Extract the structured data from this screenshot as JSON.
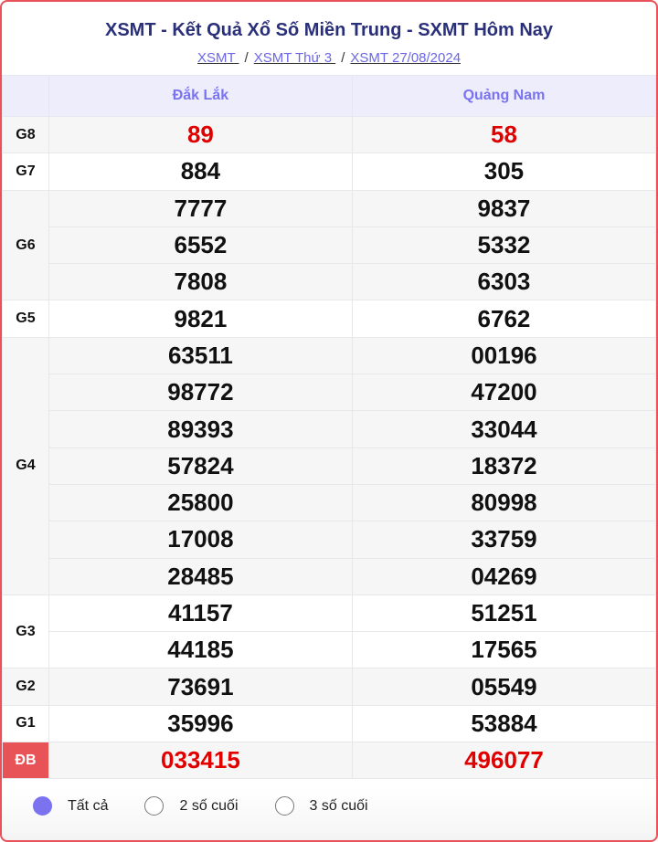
{
  "title": "XSMT - Kết Quả Xổ Số Miền Trung - SXMT Hôm Nay",
  "breadcrumb": [
    "XSMT ",
    "XSMT Thứ 3 ",
    "XSMT 27/08/2024"
  ],
  "separator": "/",
  "columns": [
    "Đắk Lắk",
    "Quảng Nam"
  ],
  "prizes": [
    {
      "label": "G8",
      "rows": [
        [
          "89",
          "58"
        ]
      ]
    },
    {
      "label": "G7",
      "rows": [
        [
          "884",
          "305"
        ]
      ]
    },
    {
      "label": "G6",
      "rows": [
        [
          "7777",
          "9837"
        ],
        [
          "6552",
          "5332"
        ],
        [
          "7808",
          "6303"
        ]
      ]
    },
    {
      "label": "G5",
      "rows": [
        [
          "9821",
          "6762"
        ]
      ]
    },
    {
      "label": "G4",
      "rows": [
        [
          "63511",
          "00196"
        ],
        [
          "98772",
          "47200"
        ],
        [
          "89393",
          "33044"
        ],
        [
          "57824",
          "18372"
        ],
        [
          "25800",
          "80998"
        ],
        [
          "17008",
          "33759"
        ],
        [
          "28485",
          "04269"
        ]
      ]
    },
    {
      "label": "G3",
      "rows": [
        [
          "41157",
          "51251"
        ],
        [
          "44185",
          "17565"
        ]
      ]
    },
    {
      "label": "G2",
      "rows": [
        [
          "73691",
          "05549"
        ]
      ]
    },
    {
      "label": "G1",
      "rows": [
        [
          "35996",
          "53884"
        ]
      ]
    },
    {
      "label": "ĐB",
      "rows": [
        [
          "033415",
          "496077"
        ]
      ]
    }
  ],
  "filters": [
    {
      "label": "Tất cả",
      "selected": true
    },
    {
      "label": "2 số cuối",
      "selected": false
    },
    {
      "label": "3 số cuối",
      "selected": false
    }
  ],
  "colors": {
    "accent": "#7a72ee",
    "border": "#e8525a",
    "prize_red": "#e00000",
    "title": "#2a2f7a"
  }
}
